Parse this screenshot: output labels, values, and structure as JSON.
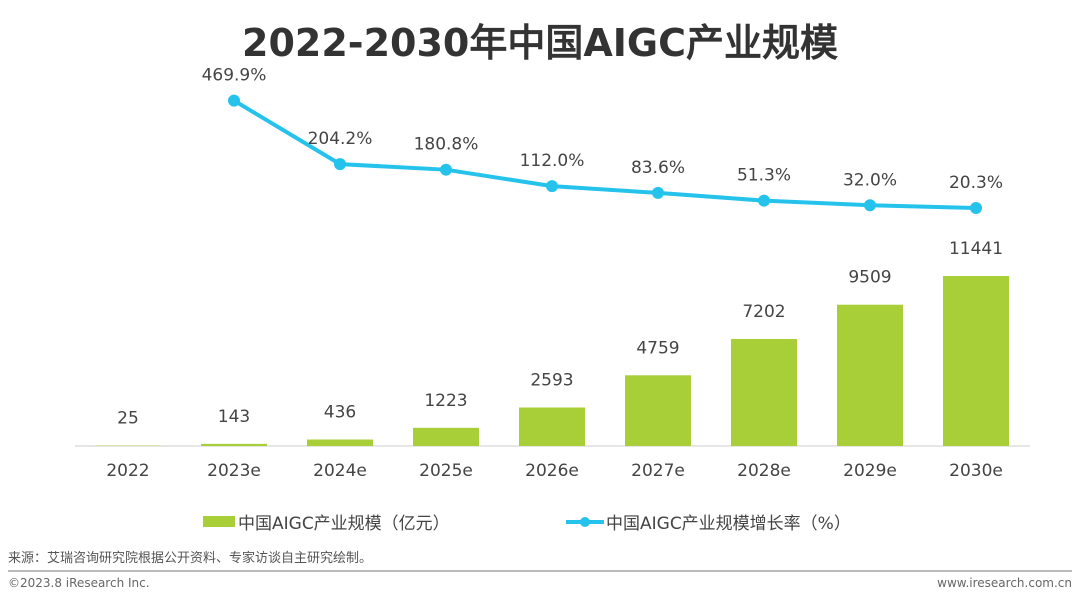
{
  "chart_data": {
    "type": "bar+line",
    "title": "2022-2030年中国AIGC产业规模",
    "categories": [
      "2022",
      "2023e",
      "2024e",
      "2025e",
      "2026e",
      "2027e",
      "2028e",
      "2029e",
      "2030e"
    ],
    "series": [
      {
        "name": "中国AIGC产业规模（亿元）",
        "type": "bar",
        "color": "#a9cf38",
        "values": [
          25,
          143,
          436,
          1223,
          2593,
          4759,
          7202,
          9509,
          11441
        ],
        "labels": [
          "25",
          "143",
          "436",
          "1223",
          "2593",
          "4759",
          "7202",
          "9509",
          "11441"
        ]
      },
      {
        "name": "中国AIGC产业规模增长率（%）",
        "type": "line",
        "color": "#25c3ec",
        "values": [
          null,
          469.9,
          204.2,
          180.8,
          112.0,
          83.6,
          51.3,
          32.0,
          20.3
        ],
        "labels": [
          "",
          "469.9%",
          "204.2%",
          "180.8%",
          "112.0%",
          "83.6%",
          "51.3%",
          "32.0%",
          "20.3%"
        ]
      }
    ],
    "legend": "bottom",
    "grid": false
  },
  "source": "来源：艾瑞咨询研究院根据公开资料、专家访谈自主研究绘制。",
  "copyright": "©2023.8 iResearch Inc.",
  "website": "www.iresearch.com.cn"
}
